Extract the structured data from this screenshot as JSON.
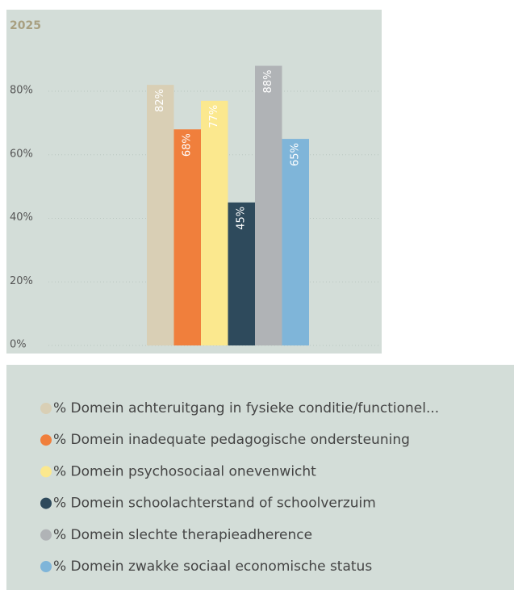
{
  "chart_data": {
    "type": "bar",
    "title": "2025",
    "ylim": [
      0,
      105
    ],
    "yticks": [
      {
        "value": 0,
        "label": "0%"
      },
      {
        "value": 20,
        "label": "20%"
      },
      {
        "value": 40,
        "label": "40%"
      },
      {
        "value": 60,
        "label": "60%"
      },
      {
        "value": 80,
        "label": "80%"
      }
    ],
    "grid": true,
    "series": [
      {
        "name": "% Domein achteruitgang in fysieke conditie/functionel...",
        "color": "#d9cfb5",
        "values": [
          82
        ],
        "value_labels": [
          "82%"
        ]
      },
      {
        "name": "% Domein inadequate pedagogische ondersteuning",
        "color": "#f07f3c",
        "values": [
          68
        ],
        "value_labels": [
          "68%"
        ]
      },
      {
        "name": "% Domein psychosociaal onevenwicht",
        "color": "#fbe88e",
        "values": [
          77
        ],
        "value_labels": [
          "77%"
        ]
      },
      {
        "name": "% Domein schoolachterstand of schoolverzuim",
        "color": "#2e4a5c",
        "values": [
          45
        ],
        "value_labels": [
          "45%"
        ]
      },
      {
        "name": "% Domein slechte therapieadherence",
        "color": "#b0b3b6",
        "values": [
          88
        ],
        "value_labels": [
          "88%"
        ]
      },
      {
        "name": "% Domein zwakke sociaal economische status",
        "color": "#7fb5d9",
        "values": [
          65
        ],
        "value_labels": [
          "65%"
        ]
      }
    ]
  }
}
